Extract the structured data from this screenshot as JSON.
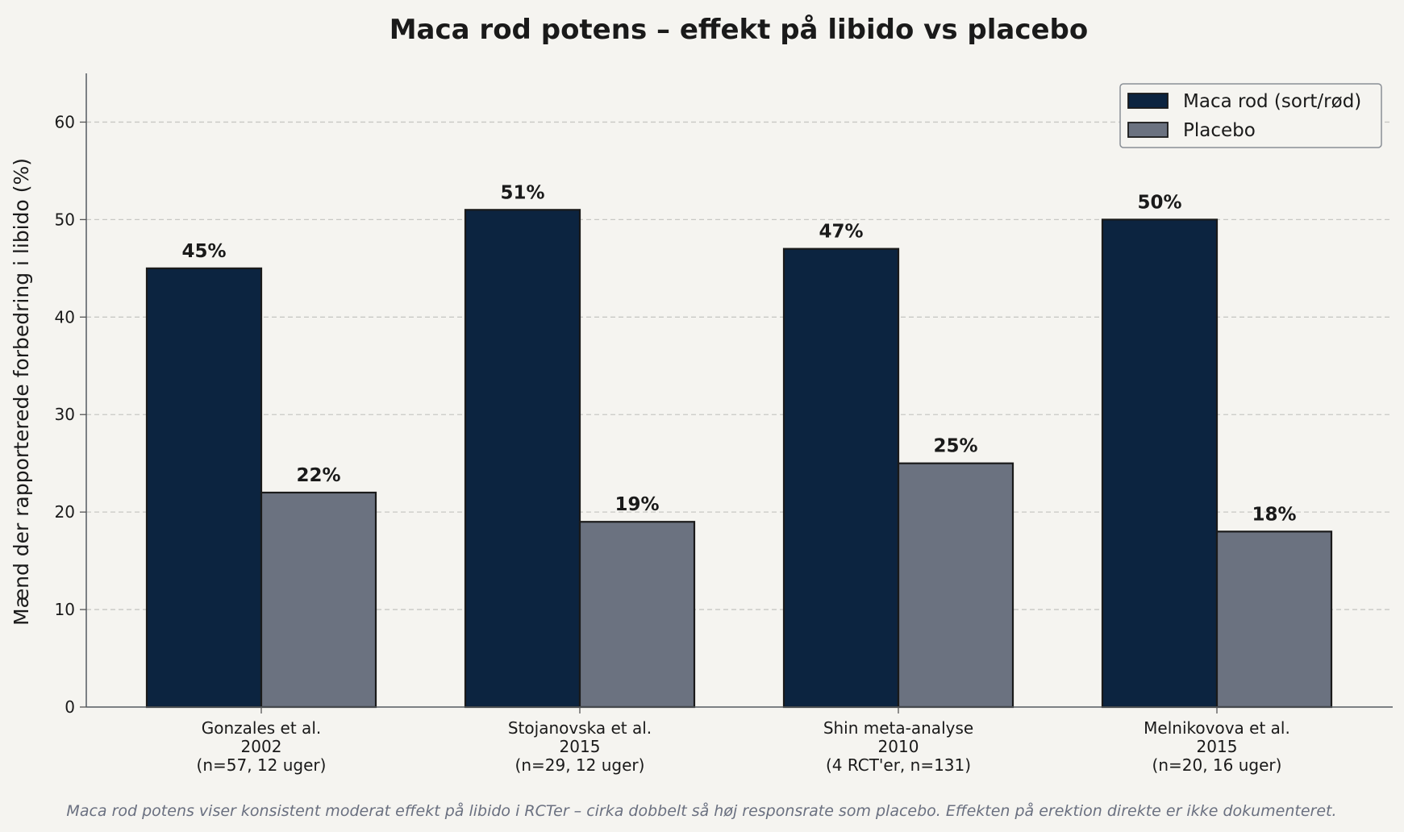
{
  "chart_data": {
    "type": "bar",
    "title": "Maca rod potens – effekt på libido vs placebo",
    "ylabel": "Mænd der rapporterede forbedring i libido (%)",
    "xlabel": "",
    "ylim": [
      0,
      65
    ],
    "yticks": [
      0,
      10,
      20,
      30,
      40,
      50,
      60
    ],
    "grid": true,
    "legend_position": "top-right",
    "categories": [
      [
        "Gonzales et al.",
        "2002",
        "(n=57, 12 uger)"
      ],
      [
        "Stojanovska et al.",
        "2015",
        "(n=29, 12 uger)"
      ],
      [
        "Shin meta-analyse",
        "2010",
        "(4 RCT'er, n=131)"
      ],
      [
        "Melnikovova et al.",
        "2015",
        "(n=20, 16 uger)"
      ]
    ],
    "series": [
      {
        "name": "Maca rod (sort/rød)",
        "values": [
          45,
          51,
          47,
          50
        ],
        "labels": [
          "45%",
          "51%",
          "47%",
          "50%"
        ],
        "color": "#0c2440"
      },
      {
        "name": "Placebo",
        "values": [
          22,
          19,
          25,
          18
        ],
        "labels": [
          "22%",
          "19%",
          "25%",
          "18%"
        ],
        "color": "#6b7280"
      }
    ],
    "footnote": "Maca rod potens viser konsistent moderat effekt på libido i RCTer – cirka dobbelt så høj responsrate som placebo. Effekten på erektion direkte er ikke dokumenteret."
  }
}
